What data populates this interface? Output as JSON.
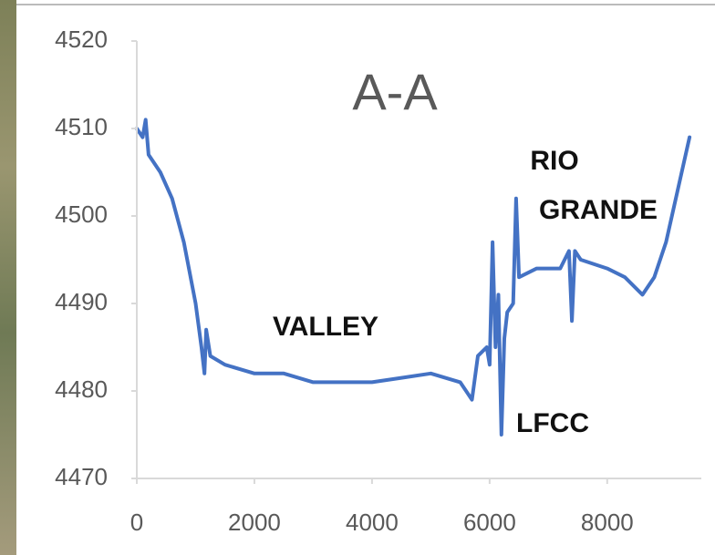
{
  "chart_data": {
    "type": "line",
    "title": "A-A",
    "x": [
      0,
      100,
      150,
      200,
      400,
      600,
      800,
      1000,
      1100,
      1150,
      1180,
      1250,
      1500,
      2000,
      2500,
      3000,
      3500,
      4000,
      4500,
      5000,
      5500,
      5700,
      5800,
      5950,
      6000,
      6050,
      6100,
      6150,
      6200,
      6250,
      6300,
      6400,
      6450,
      6500,
      6800,
      7200,
      7350,
      7400,
      7450,
      7550,
      8000,
      8300,
      8600,
      8800,
      9000,
      9200,
      9400
    ],
    "values": [
      4510,
      4509,
      4511,
      4507,
      4505,
      4502,
      4497,
      4490,
      4485,
      4482,
      4487,
      4484,
      4483,
      4482,
      4482,
      4481,
      4481,
      4481,
      4481.5,
      4482,
      4481,
      4479,
      4484,
      4485,
      4483,
      4497,
      4485,
      4491,
      4475,
      4486,
      4489,
      4490,
      4502,
      4493,
      4494,
      4494,
      4496,
      4488,
      4496,
      4495,
      4494,
      4493,
      4491,
      4493,
      4497,
      4503,
      4509
    ],
    "color": "#4472c4",
    "xlim": [
      0,
      9600
    ],
    "xticks": [
      0,
      2000,
      4000,
      6000,
      8000
    ],
    "ylim": [
      4470,
      4520
    ],
    "yticks": [
      4470,
      4480,
      4490,
      4500,
      4510,
      4520
    ],
    "annotations": [
      {
        "text": "VALLEY"
      },
      {
        "text": "RIO"
      },
      {
        "text": "GRANDE"
      },
      {
        "text": "LFCC"
      }
    ]
  }
}
